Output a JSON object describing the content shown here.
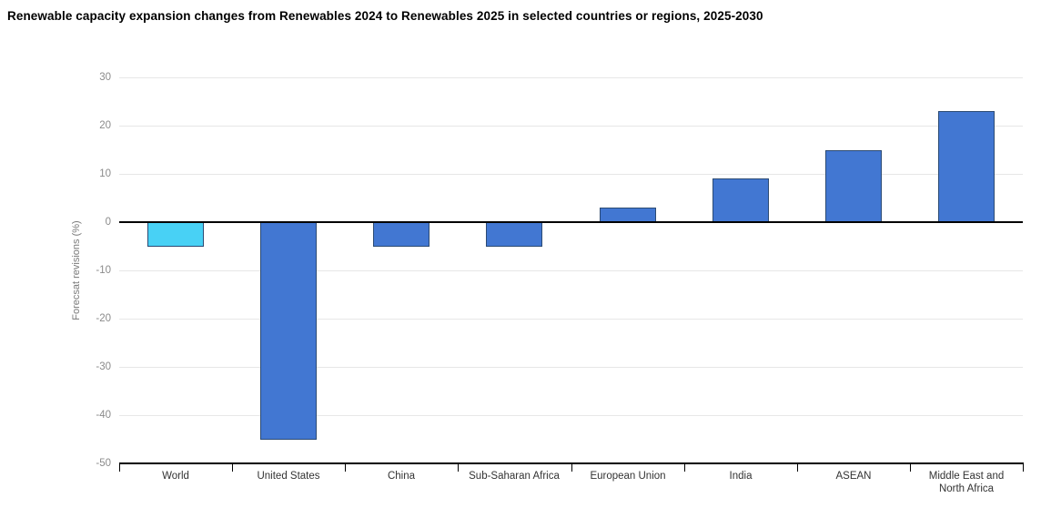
{
  "chart_data": {
    "type": "bar",
    "title": "Renewable capacity expansion changes from Renewables 2024 to Renewables 2025 in selected countries or regions, 2025-2030",
    "xlabel": "",
    "ylabel": "Forecsat revisions (%)",
    "categories": [
      "World",
      "United States",
      "China",
      "Sub-Saharan Africa",
      "European Union",
      "India",
      "ASEAN",
      "Middle East and North Africa"
    ],
    "values": [
      -5,
      -45,
      -5,
      -5,
      3,
      9,
      15,
      23
    ],
    "ylim": [
      -50,
      30
    ],
    "ytick_step": 10,
    "grid": "horizontal",
    "legend_position": "none",
    "highlight_index": 0,
    "colors": {
      "bar_default": "#4277D2",
      "bar_highlight": "#48D1F5",
      "bar_border": "#2B4A73",
      "gridline": "#E7E7E7",
      "zero_line": "#000000",
      "axis_line": "#000000",
      "tick_label": "#8B8B8B",
      "category_label": "#333333",
      "title": "#000000"
    }
  }
}
